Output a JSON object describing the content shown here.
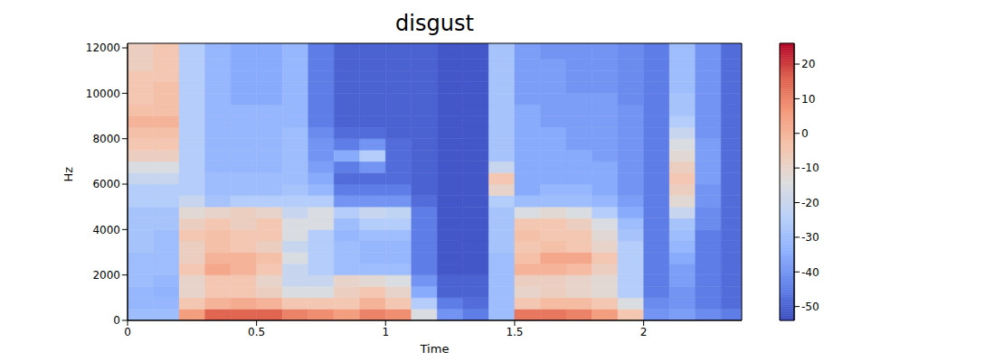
{
  "chart_data": {
    "type": "heatmap",
    "title": "disgust",
    "x_label": "Time",
    "y_label": "Hz",
    "xlim": [
      0,
      2.38
    ],
    "ylim": [
      0,
      12200
    ],
    "xticks": [
      0,
      0.5,
      1,
      1.5,
      2
    ],
    "yticks": [
      0,
      2000,
      4000,
      6000,
      8000,
      10000,
      12000
    ],
    "time_bins": [
      0,
      0.1,
      0.2,
      0.3,
      0.4,
      0.5,
      0.6,
      0.7,
      0.8,
      0.9,
      1.0,
      1.1,
      1.2,
      1.3,
      1.4,
      1.5,
      1.6,
      1.7,
      1.8,
      1.9,
      2.0,
      2.1,
      2.2,
      2.3,
      2.38
    ],
    "freq_bins": [
      0,
      500,
      1000,
      1500,
      2000,
      2500,
      3000,
      3500,
      4000,
      4500,
      5000,
      5500,
      6000,
      6500,
      7000,
      7500,
      8000,
      8500,
      9000,
      9500,
      10000,
      10500,
      11000,
      11500,
      12200
    ],
    "cells": [
      [
        -30,
        -30,
        5,
        15,
        15,
        15,
        10,
        8,
        5,
        10,
        8,
        -15,
        -40,
        -45,
        -30,
        12,
        12,
        10,
        5,
        -5,
        -40,
        -38,
        -42,
        -45
      ],
      [
        -32,
        -32,
        -5,
        0,
        2,
        0,
        -5,
        -5,
        -5,
        0,
        -5,
        -25,
        -45,
        -48,
        -30,
        -5,
        -2,
        -2,
        -5,
        -15,
        -42,
        -40,
        -45,
        -48
      ],
      [
        -32,
        -33,
        -10,
        -5,
        -5,
        -8,
        -15,
        -15,
        -8,
        -5,
        -10,
        -35,
        -50,
        -50,
        -30,
        -10,
        -8,
        -10,
        -12,
        -25,
        -45,
        -40,
        -45,
        -48
      ],
      [
        -30,
        -32,
        -10,
        -5,
        -5,
        -10,
        -20,
        -20,
        -10,
        -12,
        -15,
        -40,
        -50,
        -50,
        -30,
        -8,
        -8,
        -10,
        -12,
        -25,
        -45,
        -38,
        -45,
        -48
      ],
      [
        -30,
        -30,
        -5,
        3,
        0,
        -5,
        -20,
        -25,
        -30,
        -30,
        -30,
        -45,
        -52,
        -52,
        -30,
        0,
        0,
        -2,
        -8,
        -25,
        -45,
        -38,
        -45,
        -48
      ],
      [
        -30,
        -30,
        -8,
        0,
        0,
        -3,
        -15,
        -25,
        -30,
        -32,
        -32,
        -45,
        -52,
        -52,
        -30,
        -3,
        3,
        3,
        -5,
        -25,
        -45,
        -35,
        -45,
        -48
      ],
      [
        -28,
        -30,
        -8,
        -3,
        -5,
        -8,
        -20,
        -25,
        -30,
        -32,
        -32,
        -45,
        -52,
        -52,
        -28,
        -5,
        -3,
        -5,
        -10,
        -25,
        -45,
        -32,
        -45,
        -48
      ],
      [
        -28,
        -30,
        -5,
        -3,
        -5,
        -5,
        -15,
        -25,
        -32,
        -30,
        -30,
        -45,
        -52,
        -52,
        -28,
        -3,
        -5,
        -5,
        -12,
        -28,
        -45,
        -30,
        -45,
        -48
      ],
      [
        -28,
        -28,
        -8,
        -5,
        -8,
        -5,
        -15,
        -15,
        -30,
        -25,
        -25,
        -45,
        -52,
        -52,
        -28,
        -5,
        -5,
        -8,
        -15,
        -30,
        -45,
        -28,
        -42,
        -48
      ],
      [
        -28,
        -28,
        -12,
        -10,
        -8,
        -10,
        -20,
        -15,
        -25,
        -20,
        -22,
        -45,
        -52,
        -52,
        -28,
        -15,
        -12,
        -15,
        -25,
        -35,
        -45,
        -20,
        -42,
        -48
      ],
      [
        -25,
        -25,
        -20,
        -28,
        -25,
        -25,
        -25,
        -25,
        -40,
        -40,
        -40,
        -48,
        -52,
        -52,
        -25,
        -30,
        -30,
        -30,
        -32,
        -38,
        -45,
        -12,
        -40,
        -48
      ],
      [
        -25,
        -25,
        -25,
        -30,
        -30,
        -30,
        -28,
        -32,
        -45,
        -45,
        -45,
        -50,
        -52,
        -52,
        -10,
        -35,
        -32,
        -32,
        -35,
        -40,
        -45,
        -8,
        -40,
        -48
      ],
      [
        -20,
        -20,
        -25,
        -30,
        -30,
        -30,
        -30,
        -35,
        -48,
        -48,
        -48,
        -50,
        -52,
        -52,
        -5,
        -35,
        -35,
        -35,
        -35,
        -40,
        -45,
        -5,
        -38,
        -48
      ],
      [
        -15,
        -15,
        -25,
        -32,
        -32,
        -32,
        -30,
        -38,
        -45,
        -40,
        -48,
        -50,
        -52,
        -52,
        -20,
        -35,
        -35,
        -35,
        -35,
        -40,
        -45,
        -8,
        -38,
        -48
      ],
      [
        -8,
        -8,
        -25,
        -32,
        -32,
        -32,
        -30,
        -40,
        -35,
        -25,
        -48,
        -50,
        -52,
        -52,
        -28,
        -35,
        -35,
        -35,
        -38,
        -40,
        -45,
        -12,
        -38,
        -48
      ],
      [
        -5,
        -5,
        -25,
        -32,
        -32,
        -32,
        -30,
        -40,
        -45,
        -40,
        -48,
        -50,
        -52,
        -52,
        -28,
        -35,
        -35,
        -38,
        -38,
        -40,
        -45,
        -15,
        -38,
        -48
      ],
      [
        -3,
        -3,
        -25,
        -32,
        -32,
        -32,
        -30,
        -42,
        -48,
        -48,
        -50,
        -50,
        -52,
        -52,
        -28,
        -35,
        -35,
        -38,
        -38,
        -40,
        -45,
        -20,
        -40,
        -48
      ],
      [
        0,
        0,
        -25,
        -32,
        -32,
        -32,
        -32,
        -45,
        -50,
        -50,
        -50,
        -50,
        -52,
        -52,
        -28,
        -35,
        -38,
        -38,
        -38,
        -40,
        -45,
        -25,
        -40,
        -48
      ],
      [
        -3,
        -3,
        -25,
        -32,
        -32,
        -32,
        -32,
        -45,
        -50,
        -50,
        -50,
        -50,
        -52,
        -52,
        -28,
        -35,
        -38,
        -38,
        -38,
        -40,
        -45,
        -28,
        -40,
        -48
      ],
      [
        -5,
        -3,
        -25,
        -32,
        -35,
        -35,
        -32,
        -45,
        -50,
        -50,
        -50,
        -50,
        -52,
        -52,
        -28,
        -38,
        -38,
        -38,
        -38,
        -42,
        -45,
        -28,
        -40,
        -48
      ],
      [
        -5,
        -3,
        -25,
        -32,
        -35,
        -35,
        -32,
        -45,
        -50,
        -50,
        -50,
        -50,
        -52,
        -52,
        -28,
        -38,
        -38,
        -40,
        -40,
        -42,
        -45,
        -30,
        -40,
        -48
      ],
      [
        -5,
        -5,
        -25,
        -32,
        -35,
        -35,
        -32,
        -45,
        -50,
        -50,
        -50,
        -50,
        -52,
        -52,
        -28,
        -38,
        -38,
        -40,
        -40,
        -42,
        -45,
        -30,
        -40,
        -48
      ],
      [
        -8,
        -5,
        -25,
        -32,
        -35,
        -35,
        -32,
        -45,
        -50,
        -50,
        -50,
        -50,
        -52,
        -52,
        -28,
        -38,
        -38,
        -40,
        -40,
        -42,
        -45,
        -30,
        -40,
        -48
      ],
      [
        -8,
        -5,
        -25,
        -32,
        -35,
        -35,
        -32,
        -45,
        -50,
        -50,
        -50,
        -50,
        -52,
        -52,
        -28,
        -38,
        -40,
        -40,
        -40,
        -42,
        -45,
        -30,
        -40,
        -48
      ]
    ],
    "colorbar": {
      "range": [
        -54,
        26
      ],
      "ticks": [
        -50,
        -40,
        -30,
        -20,
        -10,
        0,
        10,
        20
      ]
    }
  }
}
